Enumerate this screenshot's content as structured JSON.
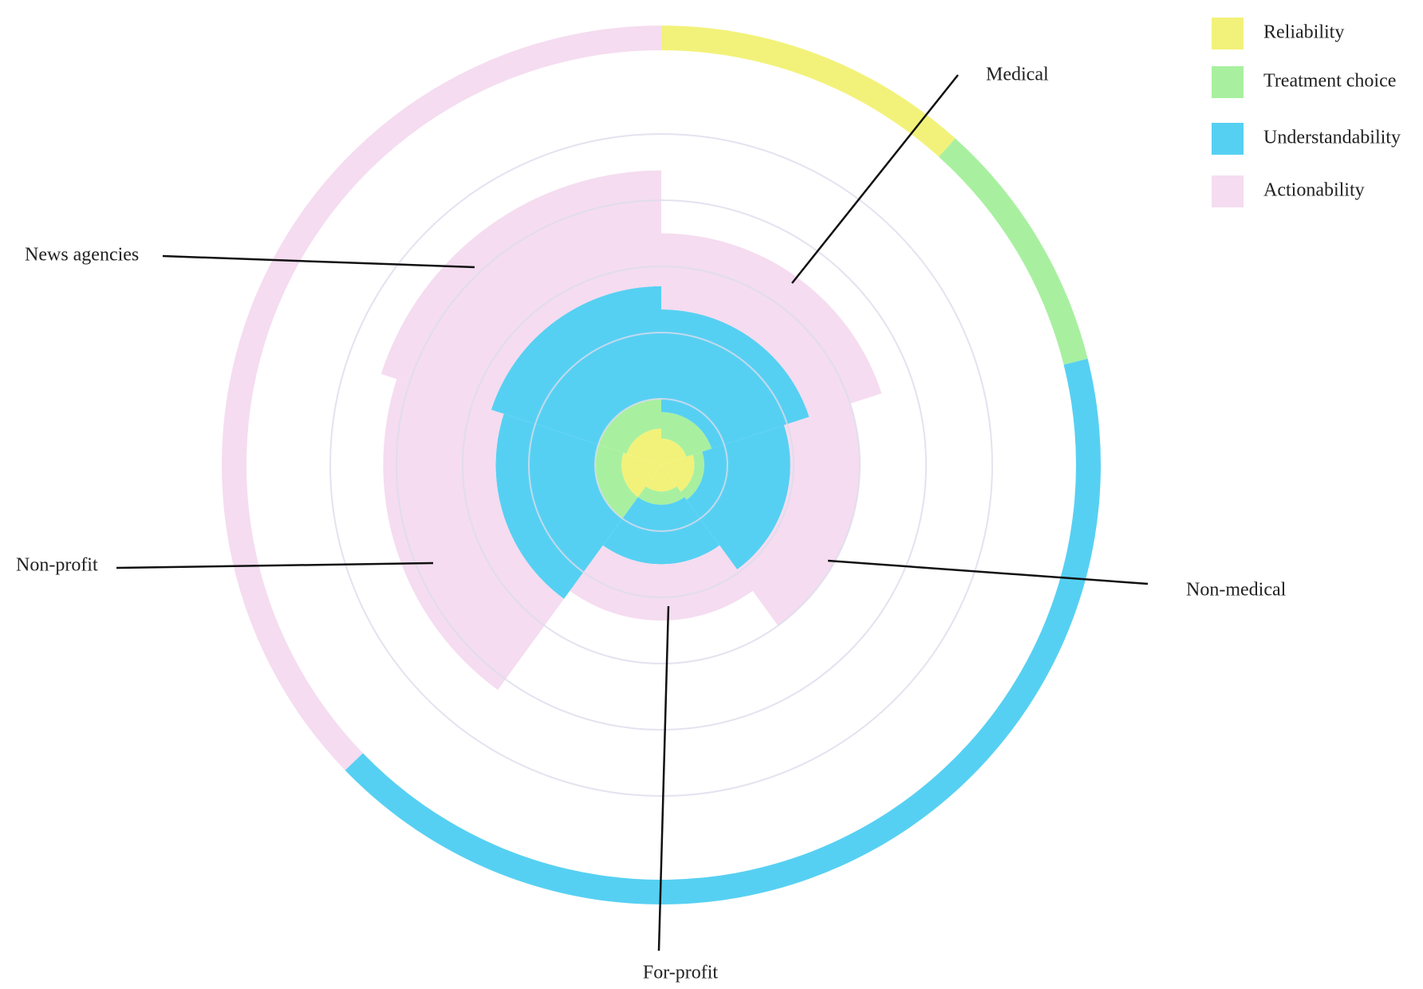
{
  "chart_data": {
    "type": "polar_stacked_bar",
    "categories": [
      "Medical",
      "Non-medical",
      "For-profit",
      "Non-profit",
      "News agencies"
    ],
    "series": [
      {
        "name": "Reliability",
        "color": "#f2f27a",
        "values": [
          0.4,
          0.5,
          0.4,
          0.6,
          0.55
        ]
      },
      {
        "name": "Treatment choice",
        "color": "#a8f0a0",
        "values": [
          0.4,
          0.15,
          0.2,
          0.4,
          0.45
        ]
      },
      {
        "name": "Understandability",
        "color": "#56d0f2",
        "values": [
          1.55,
          1.3,
          0.9,
          1.5,
          1.7
        ]
      },
      {
        "name": "Actionability",
        "color": "#f5dcf0",
        "values": [
          1.15,
          1.05,
          0.85,
          1.7,
          1.75
        ]
      }
    ],
    "ring_values": [
      42,
      34,
      150,
      134
    ],
    "ylim": [
      0,
      5
    ],
    "yticks": [
      1,
      2,
      3,
      4,
      5
    ],
    "grid": true,
    "legend": "top-right"
  }
}
